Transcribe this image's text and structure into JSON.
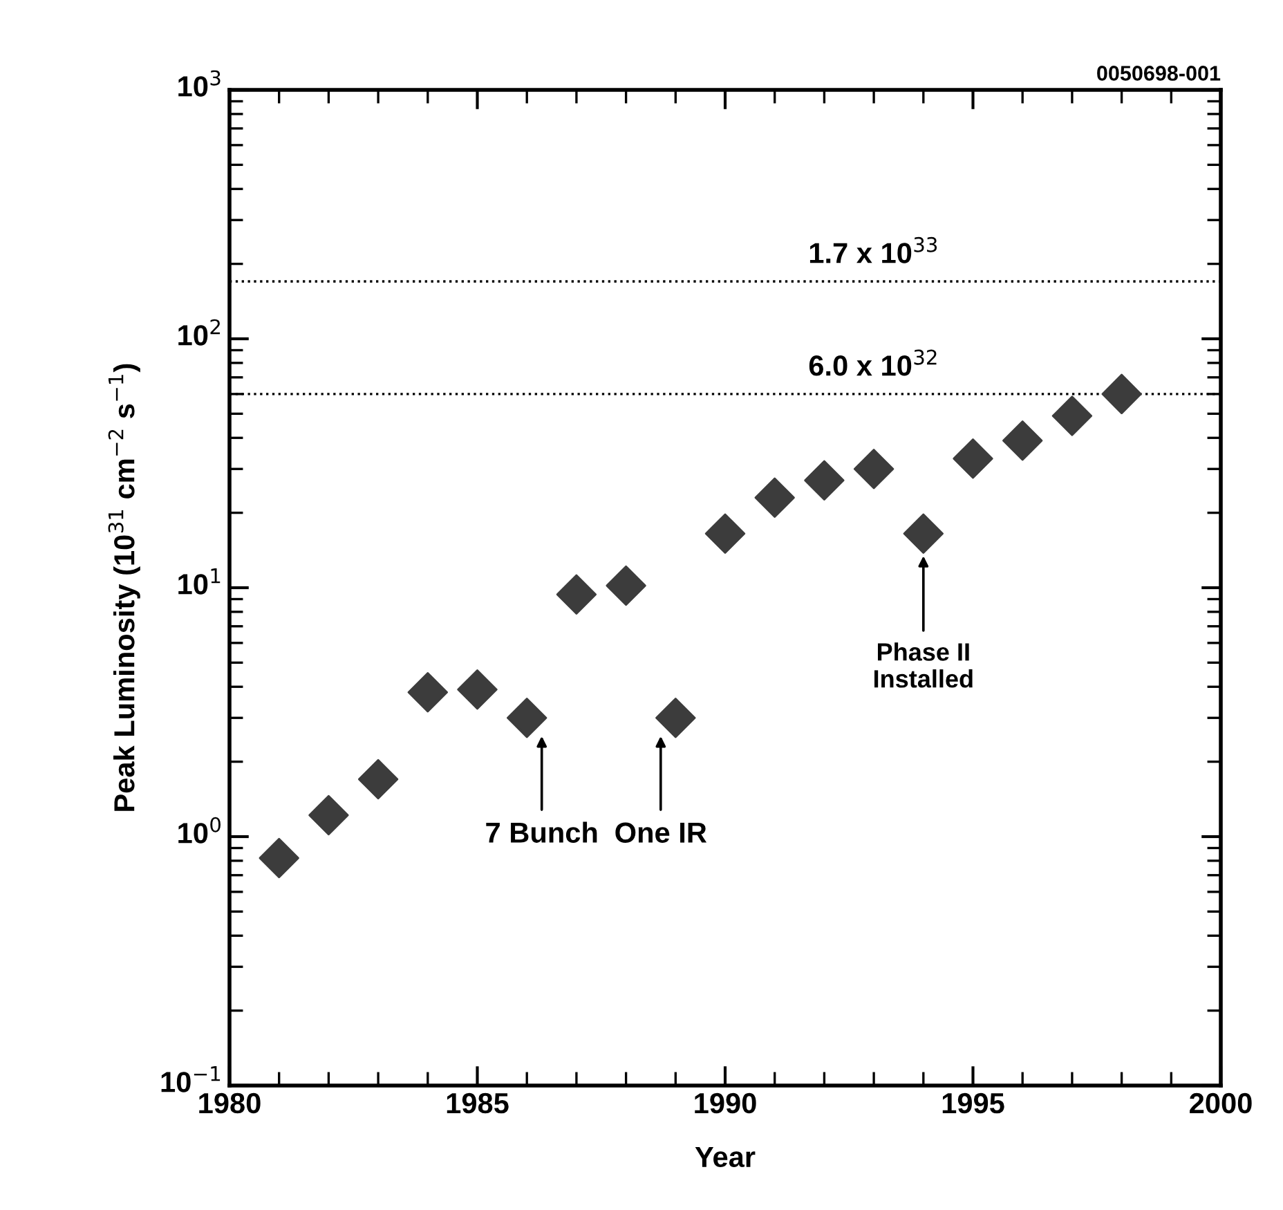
{
  "chart_data": {
    "type": "scatter",
    "xlabel": "Year",
    "ylabel": "Peak Luminosity (10$^{31}$ cm$^{−2}$ s$^{−1}$)",
    "x": [
      1981,
      1982,
      1983,
      1984,
      1985,
      1986,
      1987,
      1988,
      1989,
      1990,
      1991,
      1992,
      1993,
      1994,
      1995,
      1996,
      1997,
      1998
    ],
    "series": [
      {
        "color": "#3c3c3c",
        "values": [
          0.82,
          1.22,
          1.7,
          3.8,
          3.9,
          3.0,
          9.4,
          10.2,
          3.0,
          16.5,
          23,
          27,
          30,
          16.5,
          33,
          39,
          49,
          60
        ]
      }
    ],
    "marker": "diamond",
    "log": "y",
    "grid": false,
    "xlim": [
      1980,
      2000
    ],
    "xticks": [
      1980,
      1985,
      1990,
      1995,
      2000
    ],
    "ylim": [
      0.1,
      1000
    ],
    "yticks": [
      {
        "value": 0.1,
        "label": "10$^{−1}$"
      },
      {
        "value": 1,
        "label": "10$^{0}$"
      },
      {
        "value": 10,
        "label": "10$^{1}$"
      },
      {
        "value": 100,
        "label": "10$^{2}$"
      },
      {
        "value": 1000,
        "label": "10$^{3}$"
      }
    ],
    "ref_lines": [
      {
        "axis": "y",
        "value": 170,
        "label": "1.7 x 10$^{33}$",
        "color": "#000000",
        "line_style": "dotted"
      },
      {
        "axis": "y",
        "value": 60,
        "label": "6.0 x 10$^{32}$",
        "color": "#000000",
        "line_style": "dotted"
      }
    ],
    "annotations": [
      "0050698-001",
      "7 Bunch",
      "One IR",
      "Phase II\nInstalled"
    ]
  }
}
